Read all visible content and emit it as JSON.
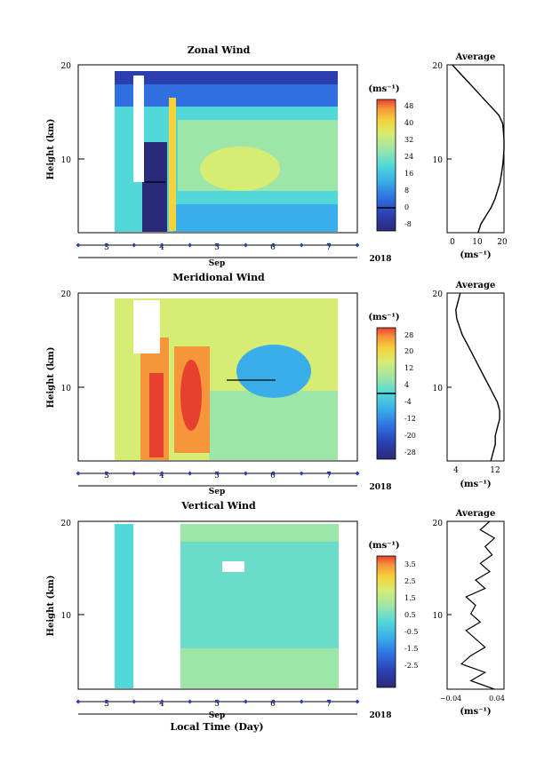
{
  "chart_data": [
    {
      "type": "heatmap",
      "title": "Zonal Wind",
      "ylabel": "Height (km)",
      "xlabel": "Sep",
      "year": "2018",
      "unit": "(ms⁻¹)",
      "ylim": [
        0,
        20
      ],
      "yticks": [
        10,
        20
      ],
      "xlim": [
        2.0,
        7.3
      ],
      "xticks": [
        3,
        4,
        5,
        6,
        7
      ],
      "data_x_range": [
        3.2,
        7.2
      ],
      "colorbar": {
        "labels": [
          "48",
          "40",
          "32",
          "24",
          "16",
          "8",
          "0",
          "-8"
        ],
        "min": -12,
        "max": 52,
        "zero_contour": 0
      },
      "profile": {
        "title": "Average",
        "xlabel": "(ms⁻¹)",
        "xlim": [
          -2,
          20
        ],
        "xticks": [
          0,
          10,
          20
        ],
        "ylim": [
          0,
          20
        ],
        "yticks": [
          10,
          20
        ],
        "heights": [
          0,
          1,
          2,
          3,
          4,
          5,
          6,
          7,
          8,
          9,
          10,
          11,
          12,
          13,
          14,
          15,
          16,
          17,
          18,
          19,
          20
        ],
        "values": [
          10,
          11,
          13,
          15,
          16.5,
          17.5,
          18.5,
          19,
          19.5,
          19.8,
          20,
          20,
          19.8,
          19.5,
          18,
          15,
          12,
          9,
          6,
          3,
          0
        ]
      }
    },
    {
      "type": "heatmap",
      "title": "Meridional Wind",
      "ylabel": "Height (km)",
      "xlabel": "Sep",
      "year": "2018",
      "unit": "(ms⁻¹)",
      "ylim": [
        0,
        20
      ],
      "yticks": [
        10,
        20
      ],
      "xlim": [
        2.0,
        7.3
      ],
      "xticks": [
        3,
        4,
        5,
        6,
        7
      ],
      "data_x_range": [
        3.2,
        7.2
      ],
      "colorbar": {
        "labels": [
          "28",
          "20",
          "12",
          "4",
          "-4",
          "-12",
          "-20",
          "-28"
        ],
        "min": -30,
        "max": 30,
        "zero_contour": 0
      },
      "profile": {
        "title": "Average",
        "xlabel": "(ms⁻¹)",
        "xlim": [
          1,
          14
        ],
        "xticks": [
          4,
          12
        ],
        "ylim": [
          0,
          20
        ],
        "yticks": [
          10,
          20
        ],
        "heights": [
          0,
          1,
          2,
          3,
          4,
          5,
          6,
          7,
          8,
          9,
          10,
          11,
          12,
          13,
          14,
          15,
          16,
          17,
          18,
          19,
          20
        ],
        "values": [
          11,
          11.5,
          12,
          12,
          12.5,
          13,
          13,
          12.5,
          11.5,
          10.5,
          9.5,
          8.5,
          7.5,
          6.5,
          5.5,
          4.5,
          3.8,
          3.2,
          3,
          3.5,
          4
        ]
      }
    },
    {
      "type": "heatmap",
      "title": "Vertical Wind",
      "ylabel": "Height (km)",
      "xlabel": "Sep",
      "year": "2018",
      "bottom_label": "Local Time (Day)",
      "unit": "(ms⁻¹)",
      "ylim": [
        0,
        20
      ],
      "yticks": [
        10,
        20
      ],
      "xlim": [
        2.0,
        7.3
      ],
      "xticks": [
        3,
        4,
        5,
        6,
        7
      ],
      "data_x_ranges": [
        [
          3.2,
          3.5
        ],
        [
          4.4,
          7.2
        ]
      ],
      "colorbar": {
        "labels": [
          "3.5",
          "2.5",
          "1.5",
          "0.5",
          "-0.5",
          "-1.5",
          "-2.5"
        ],
        "min": -4,
        "max": 4
      },
      "profile": {
        "title": "Average",
        "xlabel": "(ms⁻¹)",
        "xlim": [
          -0.06,
          0.06
        ],
        "xticks": [
          -0.04,
          0.04
        ],
        "xticklabels": [
          "−0.04",
          "0.04"
        ],
        "ylim": [
          0,
          20
        ],
        "yticks": [
          10,
          20
        ],
        "heights": [
          0,
          1,
          2,
          3,
          4,
          5,
          6,
          7,
          8,
          9,
          10,
          11,
          12,
          13,
          14,
          15,
          16,
          17,
          18,
          19,
          20
        ],
        "values": [
          0.04,
          -0.01,
          0.02,
          -0.03,
          -0.01,
          0.02,
          0.0,
          -0.02,
          0.01,
          -0.01,
          0.0,
          -0.02,
          0.02,
          0.0,
          0.03,
          0.01,
          0.035,
          0.02,
          0.04,
          0.01,
          0.03
        ]
      }
    }
  ],
  "colors": {
    "scale": [
      "#2a2a7a",
      "#2b3fae",
      "#2f6fe0",
      "#3aaee8",
      "#52d8d8",
      "#9ee6a8",
      "#d6ec72",
      "#f6d33a",
      "#f6963a",
      "#e8402f"
    ],
    "axis": "#000000",
    "tick_marker": "#2b3fae"
  }
}
